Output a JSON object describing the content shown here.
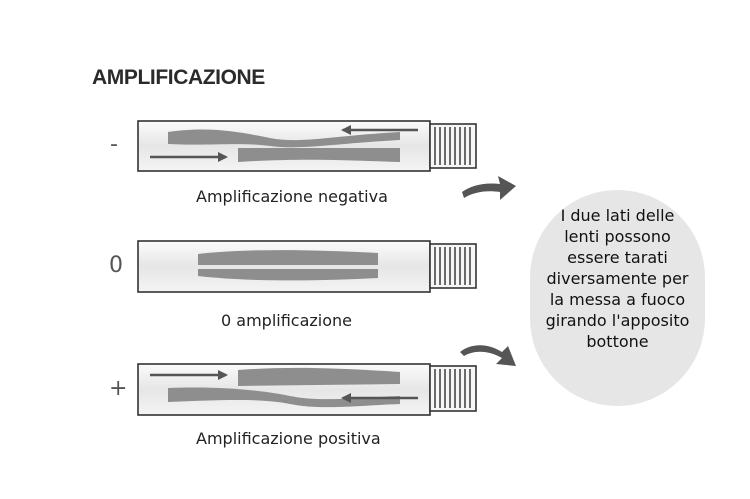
{
  "title": "AMPLIFICAZIONE",
  "rows": [
    {
      "sign": "-",
      "caption": "Amplificazione negativa"
    },
    {
      "sign": "0",
      "caption": "0 amplificazione"
    },
    {
      "sign": "+",
      "caption": "Amplificazione positiva"
    }
  ],
  "bubble": {
    "lines": [
      "I due lati delle",
      "lenti possono",
      "essere tarati",
      "diversamente per",
      "la messa a fuoco",
      "girando l'apposito",
      "bottone"
    ]
  },
  "colors": {
    "tube_fill": "#f2f2f2",
    "lens": "#8e8e8e",
    "arrow": "#555555",
    "knob": "#6a6a6a",
    "bubble": "#e6e6e6"
  }
}
